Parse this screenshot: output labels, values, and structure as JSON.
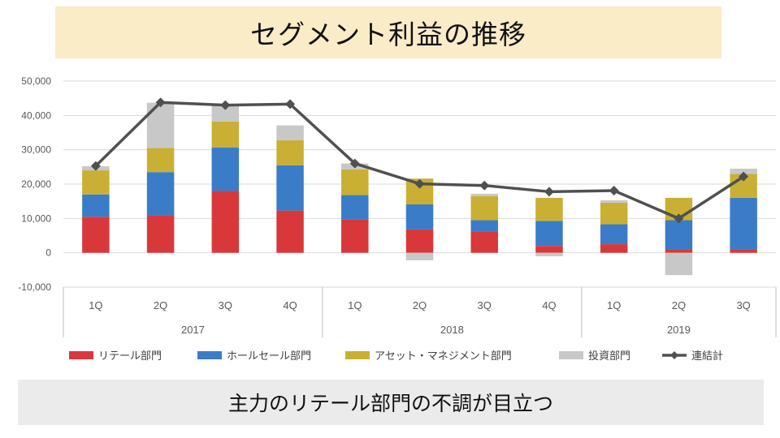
{
  "title": "セグメント利益の推移",
  "caption": "主力のリテール部門の不調が目立つ",
  "chart_data": {
    "type": "bar",
    "stacked": true,
    "categories": [
      "1Q",
      "2Q",
      "3Q",
      "4Q",
      "1Q",
      "2Q",
      "3Q",
      "4Q",
      "1Q",
      "2Q",
      "3Q"
    ],
    "groups": [
      {
        "label": "2017",
        "count": 4
      },
      {
        "label": "2018",
        "count": 4
      },
      {
        "label": "2019",
        "count": 3
      }
    ],
    "ylim": [
      -10000,
      50000
    ],
    "yticks": [
      "-10,000",
      "0",
      "10,000",
      "20,000",
      "30,000",
      "40,000",
      "50,000"
    ],
    "ytick_values": [
      -10000,
      0,
      10000,
      20000,
      30000,
      40000,
      50000
    ],
    "grid": true,
    "legend_position": "bottom",
    "series": [
      {
        "name": "リテール部門",
        "color": "#d9383a",
        "values": [
          10500,
          10800,
          18000,
          12300,
          9800,
          6800,
          6200,
          2000,
          2500,
          1000,
          1000
        ]
      },
      {
        "name": "ホールセール部門",
        "color": "#3a7cc8",
        "values": [
          6500,
          12700,
          12700,
          13200,
          7000,
          7300,
          3300,
          7300,
          5800,
          8500,
          15000
        ]
      },
      {
        "name": "アセット・マネジメント部門",
        "color": "#c9b034",
        "values": [
          7000,
          7000,
          7500,
          7300,
          7500,
          7500,
          7000,
          6700,
          6300,
          6500,
          7000
        ]
      },
      {
        "name": "投資部門",
        "color": "#c8c8c8",
        "values": [
          1200,
          13200,
          5000,
          4300,
          1700,
          -2200,
          700,
          -1000,
          700,
          -6500,
          1500
        ]
      }
    ],
    "line": {
      "name": "連結計",
      "color": "#505050",
      "values": [
        25300,
        43800,
        43000,
        43300,
        26000,
        20100,
        19600,
        17800,
        18100,
        10000,
        22200
      ]
    }
  }
}
